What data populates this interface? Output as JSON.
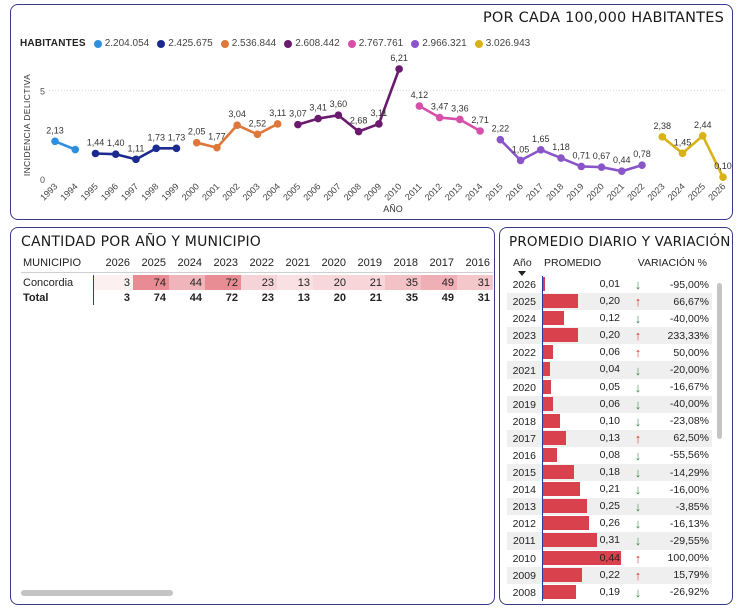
{
  "line_chart": {
    "title": "POR CADA 100,000 HABITANTES",
    "legend_title": "HABITANTES",
    "legend": [
      {
        "label": "2.204.054",
        "color": "#2f8fde"
      },
      {
        "label": "2.425.675",
        "color": "#1b2a8f"
      },
      {
        "label": "2.536.844",
        "color": "#e0773a"
      },
      {
        "label": "2.608.442",
        "color": "#6a1b6e"
      },
      {
        "label": "2.767.761",
        "color": "#d64fa9"
      },
      {
        "label": "2.966.321",
        "color": "#8a55c9"
      },
      {
        "label": "3.026.943",
        "color": "#d8b216"
      }
    ]
  },
  "chart_data": {
    "type": "line",
    "ylabel": "INCIDENCIA DELICTIVA",
    "xlabel": "AÑO",
    "ylim": [
      0,
      7
    ],
    "yticks": [
      "0",
      "5"
    ],
    "series": [
      {
        "name": "2.204.054",
        "x": [
          "1993",
          "1994"
        ],
        "values": [
          2.13,
          1.66
        ],
        "labels": [
          "2,13",
          ""
        ]
      },
      {
        "name": "2.425.675",
        "x": [
          "1995",
          "1996",
          "1997",
          "1998",
          "1999"
        ],
        "values": [
          1.44,
          1.4,
          1.11,
          1.73,
          1.73
        ],
        "labels": [
          "1,44",
          "1,40",
          "1,11",
          "1,73",
          "1,73"
        ]
      },
      {
        "name": "2.536.844",
        "x": [
          "2000",
          "2001",
          "2002",
          "2003",
          "2004"
        ],
        "values": [
          2.05,
          1.77,
          3.04,
          2.52,
          3.11
        ],
        "labels": [
          "2,05",
          "1,77",
          "3,04",
          "2,52",
          "3,11"
        ]
      },
      {
        "name": "2.608.442",
        "x": [
          "2005",
          "2006",
          "2007",
          "2008",
          "2009",
          "2010"
        ],
        "values": [
          3.07,
          3.41,
          3.6,
          2.68,
          3.11,
          6.21
        ],
        "labels": [
          "3,07",
          "3,41",
          "3,60",
          "2,68",
          "3,11",
          "6,21"
        ]
      },
      {
        "name": "2.767.761",
        "x": [
          "2011",
          "2012",
          "2013",
          "2014"
        ],
        "values": [
          4.12,
          3.47,
          3.36,
          2.71
        ],
        "labels": [
          "4,12",
          "3,47",
          "3,36",
          "2,71"
        ]
      },
      {
        "name": "2.966.321",
        "x": [
          "2015",
          "2016",
          "2017",
          "2018",
          "2019",
          "2020",
          "2021",
          "2022"
        ],
        "values": [
          2.22,
          1.05,
          1.65,
          1.18,
          0.71,
          0.67,
          0.44,
          0.78
        ],
        "labels": [
          "2,22",
          "1,05",
          "1,65",
          "1,18",
          "0,71",
          "0,67",
          "0,44",
          "0,78"
        ]
      },
      {
        "name": "3.026.943",
        "x": [
          "2023",
          "2024",
          "2025",
          "2026"
        ],
        "values": [
          2.38,
          1.45,
          2.44,
          0.1
        ],
        "labels": [
          "2,38",
          "1,45",
          "2,44",
          "0,10"
        ]
      }
    ]
  },
  "matrix": {
    "title": "CANTIDAD POR AÑO Y MUNICIPIO",
    "header_label": "MUNICIPIO",
    "years": [
      "2026",
      "2025",
      "2024",
      "2023",
      "2022",
      "2021",
      "2020",
      "2019",
      "2018",
      "2017",
      "2016"
    ],
    "rows": [
      {
        "name": "Concordia",
        "values": [
          "3",
          "74",
          "44",
          "72",
          "23",
          "13",
          "20",
          "21",
          "35",
          "49",
          "31"
        ],
        "nums": [
          3,
          74,
          44,
          72,
          23,
          13,
          20,
          21,
          35,
          49,
          31
        ]
      }
    ],
    "total": {
      "name": "Total",
      "values": [
        "3",
        "74",
        "44",
        "72",
        "23",
        "13",
        "20",
        "21",
        "35",
        "49",
        "31"
      ]
    }
  },
  "daily": {
    "title": "PROMEDIO DIARIO Y VARIACIÓN",
    "col_year": "Año",
    "col_avg": "PROMEDIO",
    "col_var": "VARIACIÓN %",
    "max_avg": 0.44,
    "rows": [
      {
        "year": "2026",
        "avg": "0,01",
        "n": 0.01,
        "dir": "down",
        "var": "-95,00%"
      },
      {
        "year": "2025",
        "avg": "0,20",
        "n": 0.2,
        "dir": "up",
        "var": "66,67%"
      },
      {
        "year": "2024",
        "avg": "0,12",
        "n": 0.12,
        "dir": "down",
        "var": "-40,00%"
      },
      {
        "year": "2023",
        "avg": "0,20",
        "n": 0.2,
        "dir": "up",
        "var": "233,33%"
      },
      {
        "year": "2022",
        "avg": "0,06",
        "n": 0.06,
        "dir": "up",
        "var": "50,00%"
      },
      {
        "year": "2021",
        "avg": "0,04",
        "n": 0.04,
        "dir": "down",
        "var": "-20,00%"
      },
      {
        "year": "2020",
        "avg": "0,05",
        "n": 0.05,
        "dir": "down",
        "var": "-16,67%"
      },
      {
        "year": "2019",
        "avg": "0,06",
        "n": 0.06,
        "dir": "down",
        "var": "-40,00%"
      },
      {
        "year": "2018",
        "avg": "0,10",
        "n": 0.1,
        "dir": "down",
        "var": "-23,08%"
      },
      {
        "year": "2017",
        "avg": "0,13",
        "n": 0.13,
        "dir": "up",
        "var": "62,50%"
      },
      {
        "year": "2016",
        "avg": "0,08",
        "n": 0.08,
        "dir": "down",
        "var": "-55,56%"
      },
      {
        "year": "2015",
        "avg": "0,18",
        "n": 0.18,
        "dir": "down",
        "var": "-14,29%"
      },
      {
        "year": "2014",
        "avg": "0,21",
        "n": 0.21,
        "dir": "down",
        "var": "-16,00%"
      },
      {
        "year": "2013",
        "avg": "0,25",
        "n": 0.25,
        "dir": "down",
        "var": "-3,85%"
      },
      {
        "year": "2012",
        "avg": "0,26",
        "n": 0.26,
        "dir": "down",
        "var": "-16,13%"
      },
      {
        "year": "2011",
        "avg": "0,31",
        "n": 0.31,
        "dir": "down",
        "var": "-29,55%"
      },
      {
        "year": "2010",
        "avg": "0,44",
        "n": 0.44,
        "dir": "up",
        "var": "100,00%"
      },
      {
        "year": "2009",
        "avg": "0,22",
        "n": 0.22,
        "dir": "up",
        "var": "15,79%"
      },
      {
        "year": "2008",
        "avg": "0,19",
        "n": 0.19,
        "dir": "down",
        "var": "-26,92%"
      }
    ]
  }
}
